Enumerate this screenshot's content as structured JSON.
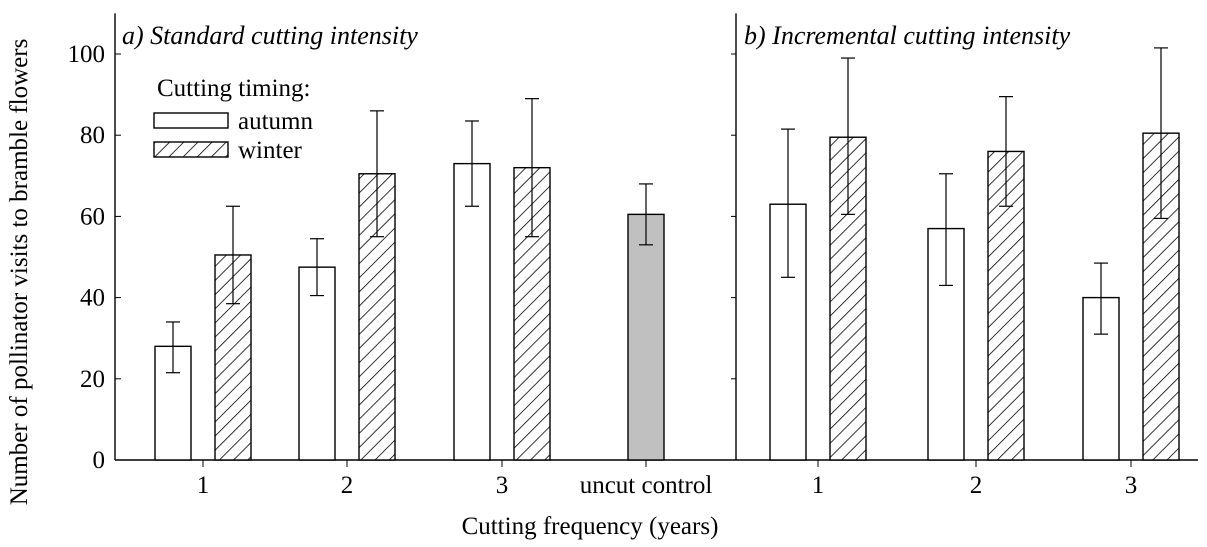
{
  "chart_data": [
    {
      "type": "bar",
      "title": "a) Standard cutting intensity",
      "categories": [
        "1",
        "2",
        "3",
        "uncut control"
      ],
      "ylabel": "Number of pollinator visits to bramble flowers",
      "xlabel": "Cutting frequency (years)",
      "ylim": [
        0,
        110
      ],
      "yticks": [
        0,
        20,
        40,
        60,
        80,
        100
      ],
      "series": [
        {
          "name": "autumn",
          "pattern": "open",
          "values": [
            28,
            47.5,
            73,
            null
          ],
          "err_low": [
            21.5,
            40.5,
            62.5,
            null
          ],
          "err_high": [
            34,
            54.5,
            83.5,
            null
          ]
        },
        {
          "name": "winter",
          "pattern": "hatched",
          "values": [
            50.5,
            70.5,
            72,
            null
          ],
          "err_low": [
            38.5,
            55,
            55,
            null
          ],
          "err_high": [
            62.5,
            86,
            89,
            null
          ]
        },
        {
          "name": "control",
          "pattern": "grey",
          "values": [
            null,
            null,
            null,
            60.5
          ],
          "err_low": [
            null,
            null,
            null,
            53
          ],
          "err_high": [
            null,
            null,
            null,
            68
          ]
        }
      ],
      "legend": {
        "title": "Cutting timing:",
        "entries": [
          "autumn",
          "winter"
        ],
        "position": "top-left"
      }
    },
    {
      "type": "bar",
      "title": "b) Incremental cutting intensity",
      "categories": [
        "1",
        "2",
        "3"
      ],
      "ylim": [
        0,
        110
      ],
      "series": [
        {
          "name": "autumn",
          "pattern": "open",
          "values": [
            63,
            57,
            40
          ],
          "err_low": [
            45,
            43,
            31
          ],
          "err_high": [
            81.5,
            70.5,
            48.5
          ]
        },
        {
          "name": "winter",
          "pattern": "hatched",
          "values": [
            79.5,
            76,
            80.5
          ],
          "err_low": [
            60.5,
            62.5,
            59.5
          ],
          "err_high": [
            99,
            89.5,
            101.5
          ]
        }
      ]
    }
  ],
  "colors": {
    "bar_fill": "#ffffff",
    "control_fill": "#c0c0c0",
    "stroke": "#000000"
  }
}
